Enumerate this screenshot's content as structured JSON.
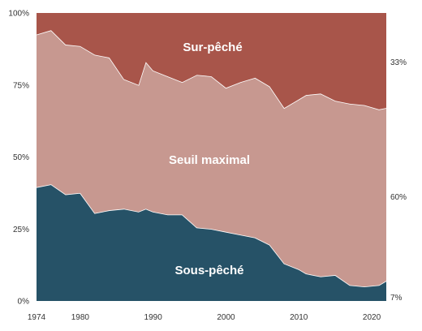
{
  "chart_data": {
    "type": "area",
    "stacked": true,
    "x": [
      1974,
      1976,
      1978,
      1980,
      1982,
      1984,
      1986,
      1988,
      1989,
      1990,
      1992,
      1994,
      1996,
      1998,
      2000,
      2002,
      2004,
      2006,
      2008,
      2010,
      2011,
      2013,
      2015,
      2017,
      2019,
      2021,
      2022
    ],
    "series": [
      {
        "name": "Sous-pêché",
        "color": "#265267",
        "values": [
          39.5,
          40.5,
          37,
          37.5,
          30.5,
          31.5,
          32,
          31,
          32,
          31,
          30,
          30,
          25.5,
          25,
          24,
          23,
          22,
          19.5,
          13,
          11,
          9.5,
          8.5,
          9,
          5.5,
          5,
          5.5,
          7
        ]
      },
      {
        "name": "Seuil maximal",
        "color": "#c79890",
        "values": [
          53,
          53.5,
          52,
          51,
          55,
          53,
          45,
          44,
          51,
          49,
          48,
          46,
          53,
          53,
          50,
          53,
          55.5,
          55,
          54,
          59,
          62,
          63.5,
          60.5,
          63,
          63,
          61,
          60
        ]
      },
      {
        "name": "Sur-pêché",
        "color": "#a8554a",
        "values": [
          7.5,
          6,
          11,
          11.5,
          14.5,
          15.5,
          23,
          25,
          17,
          20,
          22,
          24,
          21.5,
          22,
          26,
          24,
          22.5,
          25.5,
          33,
          30,
          28.5,
          28,
          30.5,
          31.5,
          32,
          33.5,
          33
        ]
      }
    ],
    "area_labels": [
      "Sur-pêché",
      "Seuil maximal",
      "Sous-pêché"
    ],
    "end_labels": [
      "33%",
      "60%",
      "7%"
    ],
    "xticks": [
      "1974",
      "1980",
      "1990",
      "2000",
      "2010",
      "2020"
    ],
    "xtick_values": [
      1974,
      1980,
      1990,
      2000,
      2010,
      2020
    ],
    "yticks": [
      "0%",
      "25%",
      "50%",
      "75%",
      "100%"
    ],
    "ytick_values": [
      0,
      25,
      50,
      75,
      100
    ],
    "xlim": [
      1974,
      2022
    ],
    "ylim": [
      0,
      100
    ],
    "title": "",
    "xlabel": "",
    "ylabel": "",
    "grid": false,
    "legend": "none"
  }
}
